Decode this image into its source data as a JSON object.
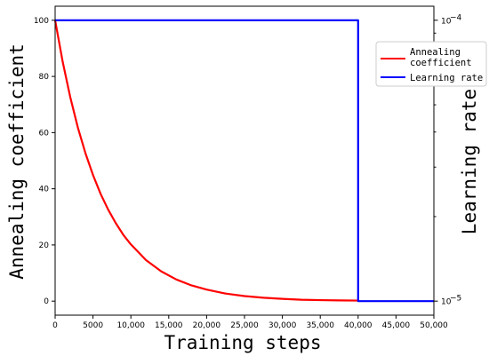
{
  "chart_data": {
    "type": "line",
    "xlabel": "Training steps",
    "ylabel_left": "Annealing coefficient",
    "ylabel_right": "Learning rate",
    "xlim": [
      0,
      50000
    ],
    "ylim_left": [
      -5,
      105
    ],
    "ylim_right_log": [
      1e-05,
      0.0001
    ],
    "x_ticks": [
      0,
      5000,
      10000,
      15000,
      20000,
      25000,
      30000,
      35000,
      40000,
      45000,
      50000
    ],
    "x_tick_labels": [
      "0",
      "5000",
      "10,000",
      "15,000",
      "20,000",
      "25,000",
      "30,000",
      "35,000",
      "40,000",
      "45,000",
      "50,000"
    ],
    "y_left_ticks": [
      0,
      20,
      40,
      60,
      80,
      100
    ],
    "y_left_tick_labels": [
      "0",
      "20",
      "40",
      "60",
      "80",
      "100"
    ],
    "y_right_tick_labels": [
      {
        "base": "10",
        "exp": "−4",
        "value": 0.0001
      },
      {
        "base": "10",
        "exp": "−5",
        "value": 1e-05
      }
    ],
    "grid": false,
    "legend_position": "upper-right",
    "series": [
      {
        "name": "Annealing coefficient",
        "name_lines": [
          "Annealing",
          "coefficient"
        ],
        "axis": "left",
        "color": "#ff0000",
        "x": [
          0,
          1000,
          2000,
          3000,
          4000,
          5000,
          6000,
          7000,
          8000,
          9000,
          10000,
          12000,
          14000,
          16000,
          18000,
          20000,
          22500,
          25000,
          27500,
          30000,
          32500,
          35000,
          37500,
          40000
        ],
        "y": [
          100,
          85.2,
          72.6,
          61.8,
          52.7,
          44.9,
          38.2,
          32.6,
          27.8,
          23.6,
          20.2,
          14.6,
          10.6,
          7.7,
          5.6,
          4.1,
          2.7,
          1.8,
          1.2,
          0.8,
          0.5,
          0.35,
          0.25,
          0.2
        ]
      },
      {
        "name": "Learning rate",
        "axis": "right",
        "color": "#0000ff",
        "x": [
          0,
          40000,
          40000,
          50000
        ],
        "y": [
          0.0001,
          0.0001,
          1e-05,
          1e-05
        ]
      }
    ]
  }
}
